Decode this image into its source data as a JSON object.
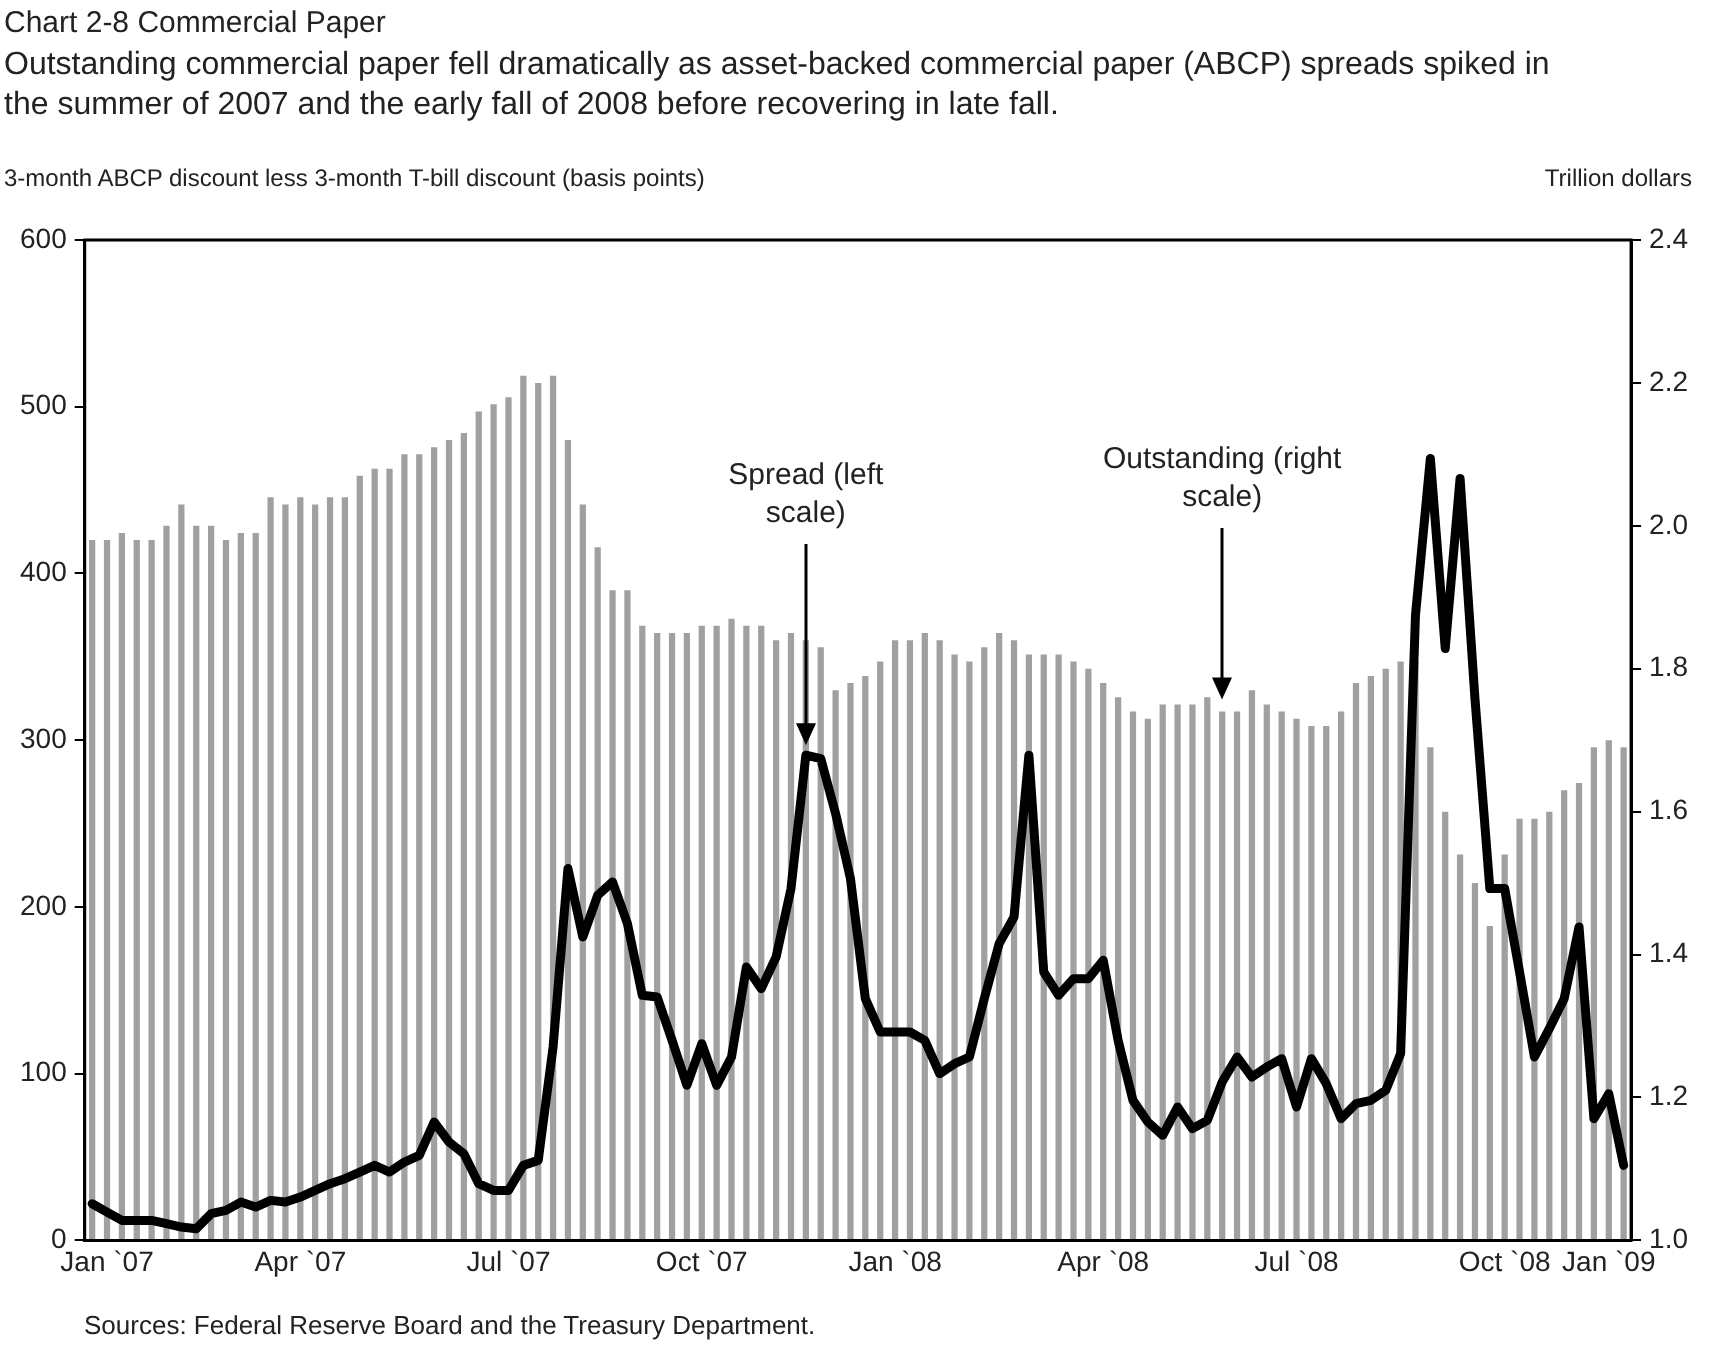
{
  "chart_data": {
    "type": "bar",
    "title": "Chart 2-8 Commercial Paper",
    "subtitle": "Outstanding commercial paper fell dramatically as asset-backed commercial paper (ABCP) spreads spiked in the summer of 2007 and the early fall of 2008 before recovering in late fall.",
    "ylabel": "3-month ABCP discount less 3-month T-bill discount (basis points)",
    "y2label": "Trillion dollars",
    "annotations": [
      {
        "text": "Spread (left scale)",
        "y": 297
      },
      "Outstanding (right scale)",
      "Sources: Federal Reserve Board and the Treasury Department."
    ],
    "categories": [
      null,
      "Jan `07",
      null,
      null,
      null,
      null,
      null,
      null,
      null,
      null,
      null,
      null,
      null,
      null,
      "Apr `07",
      null,
      null,
      null,
      null,
      null,
      null,
      null,
      null,
      null,
      null,
      null,
      null,
      null,
      "Jul `07",
      null,
      null,
      null,
      null,
      null,
      null,
      null,
      null,
      null,
      null,
      null,
      null,
      "Oct `07",
      null,
      null,
      null,
      null,
      null,
      null,
      null,
      null,
      null,
      null,
      null,
      null,
      "Jan `08",
      null,
      null,
      null,
      null,
      null,
      null,
      null,
      null,
      null,
      null,
      null,
      null,
      null,
      "Apr `08",
      null,
      null,
      null,
      null,
      null,
      null,
      null,
      null,
      null,
      null,
      null,
      null,
      "Jul `08",
      null,
      null,
      null,
      null,
      null,
      null,
      null,
      null,
      null,
      null,
      null,
      null,
      null,
      "Oct `08",
      null,
      null,
      null,
      null,
      null,
      null,
      "Jan `09",
      null
    ],
    "series": [
      {
        "type": "bar",
        "axis": "y2",
        "color": "#a0a0a0",
        "values": [
          1.98,
          1.98,
          1.99,
          1.98,
          1.98,
          2.0,
          2.03,
          2.0,
          2.0,
          1.98,
          1.99,
          1.99,
          2.04,
          2.03,
          2.04,
          2.03,
          2.04,
          2.04,
          2.07,
          2.08,
          2.08,
          2.1,
          2.1,
          2.11,
          2.12,
          2.13,
          2.16,
          2.17,
          2.18,
          2.21,
          2.2,
          2.21,
          2.12,
          2.03,
          1.97,
          1.91,
          1.91,
          1.86,
          1.85,
          1.85,
          1.85,
          1.86,
          1.86,
          1.87,
          1.86,
          1.86,
          1.84,
          1.85,
          1.84,
          1.83,
          1.77,
          1.78,
          1.79,
          1.81,
          1.84,
          1.84,
          1.85,
          1.84,
          1.82,
          1.81,
          1.83,
          1.85,
          1.84,
          1.82,
          1.82,
          1.82,
          1.81,
          1.8,
          1.78,
          1.76,
          1.74,
          1.73,
          1.75,
          1.75,
          1.75,
          1.76,
          1.74,
          1.74,
          1.77,
          1.75,
          1.74,
          1.73,
          1.72,
          1.72,
          1.74,
          1.78,
          1.79,
          1.8,
          1.81,
          1.81,
          1.69,
          1.6,
          1.54,
          1.5,
          1.44,
          1.54,
          1.59,
          1.59,
          1.6,
          1.63,
          1.64,
          1.69,
          1.7,
          1.69
        ]
      },
      {
        "type": "line",
        "axis": "y",
        "color": "#000000",
        "values": [
          22,
          17,
          12,
          12,
          12,
          10,
          8,
          7,
          16,
          18,
          23,
          20,
          24,
          23,
          26,
          30,
          34,
          37,
          41,
          45,
          41,
          47,
          51,
          71,
          59,
          52,
          34,
          30,
          30,
          45,
          48,
          116,
          223,
          182,
          207,
          215,
          190,
          147,
          146,
          120,
          93,
          118,
          93,
          110,
          164,
          151,
          170,
          211,
          291,
          289,
          256,
          217,
          145,
          125,
          125,
          125,
          120,
          100,
          106,
          110,
          145,
          178,
          194,
          291,
          161,
          147,
          157,
          157,
          168,
          120,
          84,
          71,
          63,
          80,
          67,
          72,
          95,
          110,
          98,
          104,
          109,
          80,
          109,
          94,
          73,
          82,
          84,
          90,
          112,
          375,
          469,
          355,
          457,
          325,
          211,
          211,
          161,
          110,
          127,
          145,
          188,
          73,
          88,
          45
        ]
      }
    ],
    "ylim": [
      0,
      600
    ],
    "yticks": [
      0,
      100,
      200,
      300,
      400,
      500,
      600
    ],
    "y2lim": [
      1,
      2.4
    ],
    "y2ticks": [
      {
        "value": 1,
        "label": "1.0"
      },
      1.2,
      1.4,
      1.6,
      1.8,
      {
        "value": 2,
        "label": "2.0"
      },
      2.2,
      2.4
    ],
    "marker": "none",
    "line_style": "solid",
    "grid": false,
    "legend": false
  }
}
